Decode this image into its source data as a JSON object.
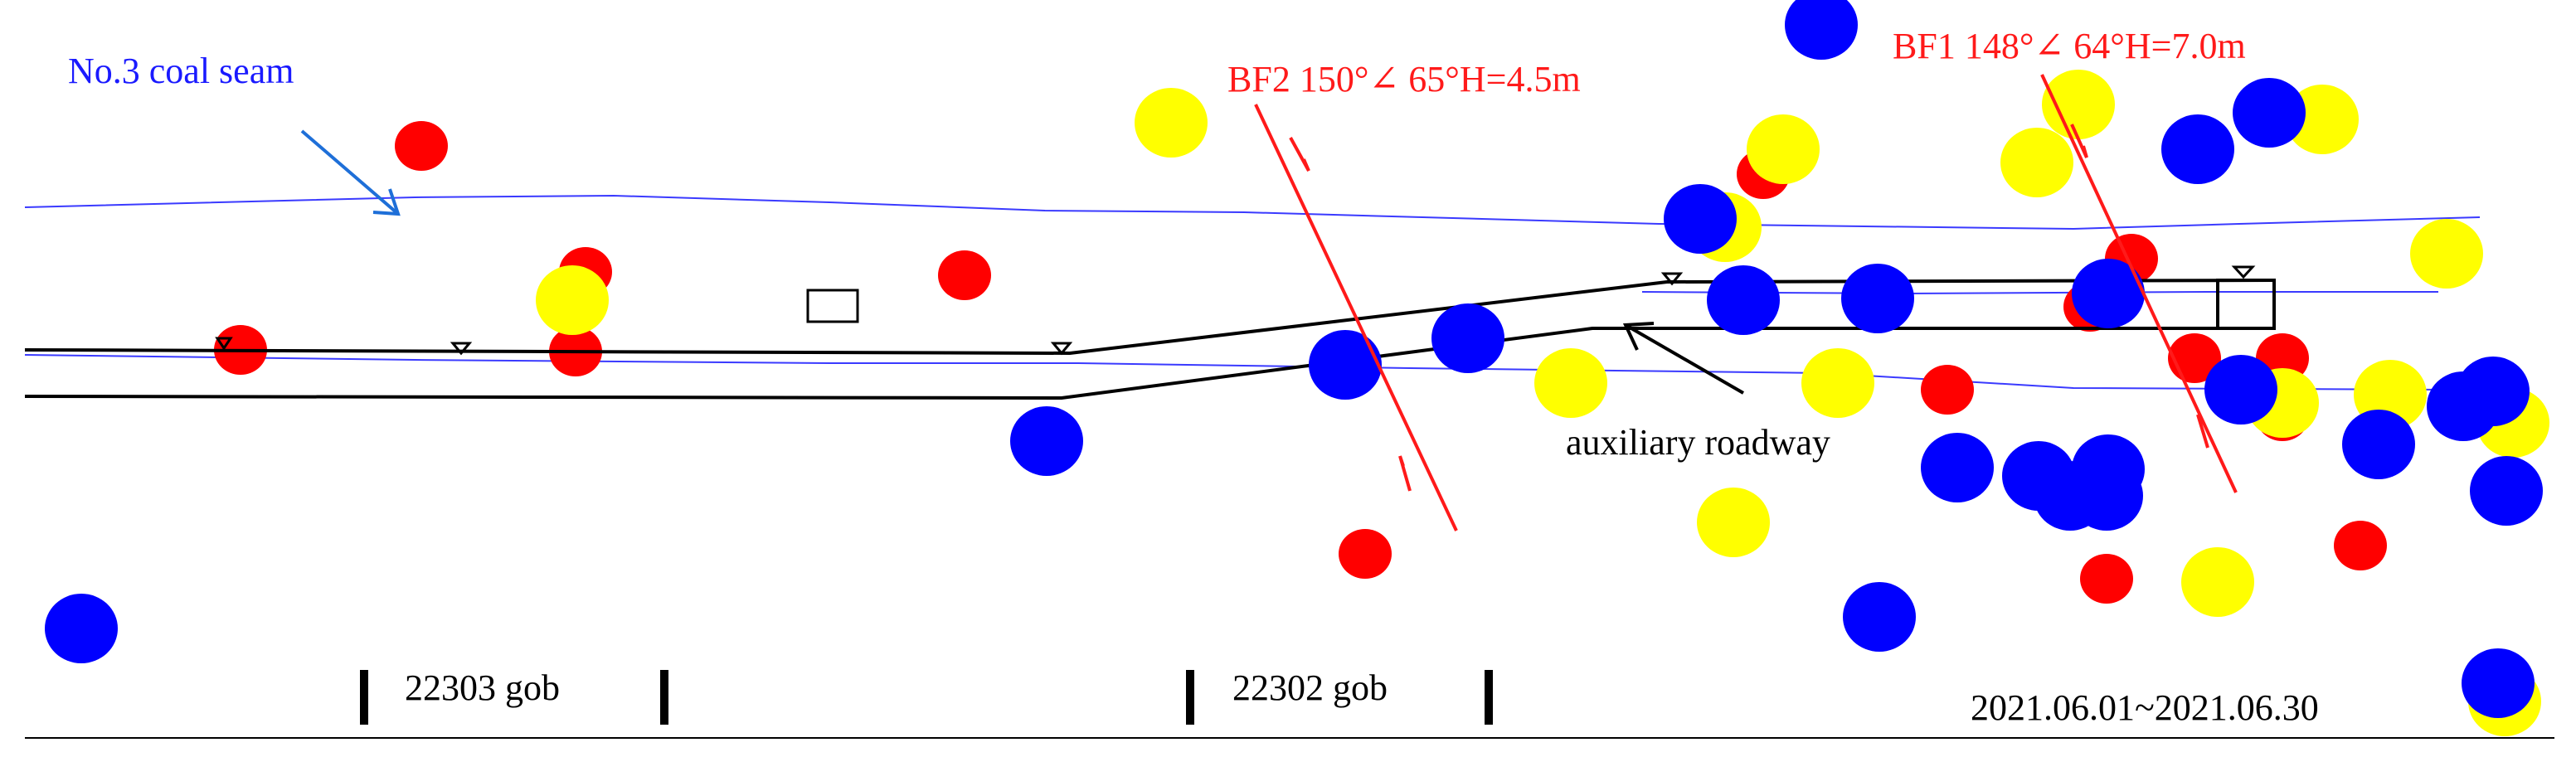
{
  "labels": {
    "coal_seam": "No.3 coal seam",
    "fault_bf2": "BF2 150°∠ 65°H=4.5m",
    "fault_bf1": "BF1 148°∠ 64°H=7.0m",
    "auxiliary_roadway": "auxiliary roadway",
    "gob_22303": "22303 gob",
    "gob_22302": "22302 gob",
    "date_range": "2021.06.01~2021.06.30"
  },
  "colors": {
    "coal_seam": "#1a1aff",
    "fault": "#ff1a1a",
    "roadway": "#000000",
    "event_red": "#ff0000",
    "event_yellow": "#ffff00",
    "event_blue": "#0000ff",
    "arrow_blue": "#1e6fd8"
  },
  "legend_icons": {
    "fault": "fault-line-icon",
    "roadway_mark": "inverted-triangle-icon",
    "event": "circle-icon"
  }
}
